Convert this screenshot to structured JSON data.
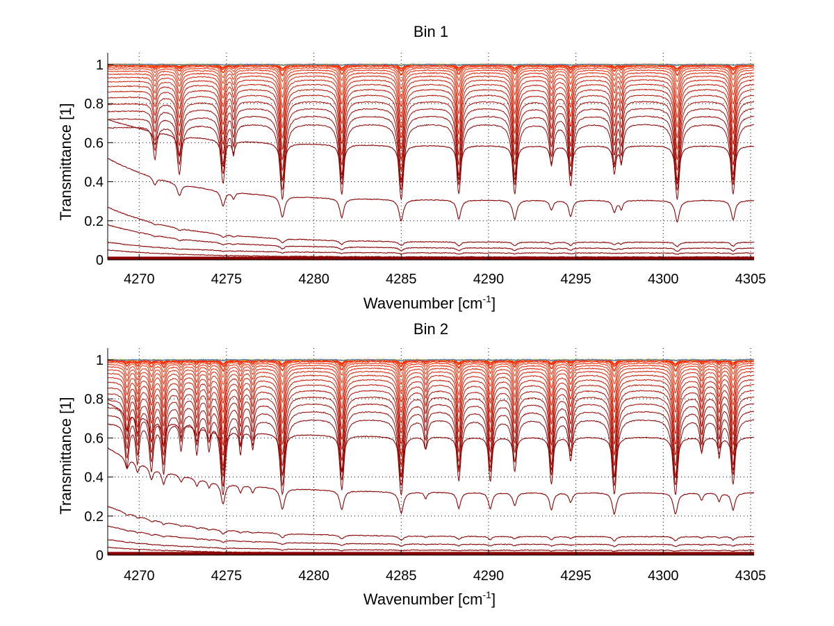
{
  "figure": {
    "background": "#ffffff",
    "grid_color": "#000000",
    "line_color_dark": "#8b0000",
    "line_color_bright": "#ff2a00",
    "top_colors": [
      "#ffa500",
      "#ffd400",
      "#9acd32",
      "#4169e1"
    ]
  },
  "chart_data": [
    {
      "type": "line",
      "title": "Bin 1",
      "xlabel": "Wavenumber [cm",
      "xlabel_sup": "-1",
      "xlabel_end": "]",
      "ylabel": "Transmittance [1]",
      "xlim": [
        4268.2,
        4305.2
      ],
      "ylim": [
        0,
        1.06
      ],
      "xticks": [
        4270,
        4275,
        4280,
        4285,
        4290,
        4295,
        4300,
        4305
      ],
      "xtick_labels": [
        "4270",
        "4275",
        "4280",
        "4285",
        "4290",
        "4295",
        "4300",
        "4305"
      ],
      "yticks": [
        0,
        0.2,
        0.4,
        0.6,
        0.8,
        1
      ],
      "ytick_labels": [
        "0",
        "0.2",
        "0.4",
        "0.6",
        "0.8",
        "1"
      ],
      "grid": true,
      "legend": "none",
      "num_series_approx": 30,
      "absorption_lines": [
        {
          "x": 4270.9,
          "depth": 0.35,
          "width": 0.12
        },
        {
          "x": 4272.3,
          "depth": 0.55,
          "width": 0.14
        },
        {
          "x": 4274.8,
          "depth": 0.7,
          "width": 0.14
        },
        {
          "x": 4275.4,
          "depth": 0.3,
          "width": 0.1
        },
        {
          "x": 4278.2,
          "depth": 1.0,
          "width": 0.15
        },
        {
          "x": 4281.6,
          "depth": 0.9,
          "width": 0.14
        },
        {
          "x": 4285.0,
          "depth": 1.0,
          "width": 0.15
        },
        {
          "x": 4288.3,
          "depth": 0.9,
          "width": 0.14
        },
        {
          "x": 4291.5,
          "depth": 0.9,
          "width": 0.14
        },
        {
          "x": 4293.6,
          "depth": 0.45,
          "width": 0.12
        },
        {
          "x": 4294.7,
          "depth": 0.75,
          "width": 0.13
        },
        {
          "x": 4297.2,
          "depth": 0.55,
          "width": 0.13
        },
        {
          "x": 4297.6,
          "depth": 0.4,
          "width": 0.1
        },
        {
          "x": 4300.8,
          "depth": 1.0,
          "width": 0.15
        },
        {
          "x": 4304.0,
          "depth": 0.9,
          "width": 0.14
        }
      ],
      "low_curves": [
        {
          "label": "baseline ~0.6",
          "left": 0.72,
          "plateau": 0.585,
          "depth_scale": 0.35
        },
        {
          "label": "baseline ~0.3",
          "left": 0.52,
          "plateau": 0.305,
          "depth_scale": 0.2
        },
        {
          "label": "baseline ~0.09",
          "left": 0.27,
          "plateau": 0.09,
          "depth_scale": 0.04
        },
        {
          "label": "baseline ~0.06",
          "left": 0.18,
          "plateau": 0.06,
          "depth_scale": 0.03
        },
        {
          "label": "baseline ~0.03",
          "left": 0.09,
          "plateau": 0.035,
          "depth_scale": 0.01
        },
        {
          "label": "baseline ~0.015",
          "left": 0.05,
          "plateau": 0.015,
          "depth_scale": 0.005
        }
      ]
    },
    {
      "type": "line",
      "title": "Bin 2",
      "xlabel": "Wavenumber [cm",
      "xlabel_sup": "-1",
      "xlabel_end": "]",
      "ylabel": "Transmittance [1]",
      "xlim": [
        4268.2,
        4305.2
      ],
      "ylim": [
        0,
        1.06
      ],
      "xticks": [
        4270,
        4275,
        4280,
        4285,
        4290,
        4295,
        4300,
        4305
      ],
      "xtick_labels": [
        "4270",
        "4275",
        "4280",
        "4285",
        "4290",
        "4295",
        "4300",
        "4305"
      ],
      "yticks": [
        0,
        0.2,
        0.4,
        0.6,
        0.8,
        1
      ],
      "ytick_labels": [
        "0",
        "0.2",
        "0.4",
        "0.6",
        "0.8",
        "1"
      ],
      "grid": true,
      "legend": "none",
      "num_series_approx": 30,
      "absorption_lines": [
        {
          "x": 4269.3,
          "depth": 0.5,
          "width": 0.12
        },
        {
          "x": 4269.9,
          "depth": 0.45,
          "width": 0.1
        },
        {
          "x": 4270.7,
          "depth": 0.55,
          "width": 0.12
        },
        {
          "x": 4271.4,
          "depth": 0.6,
          "width": 0.12
        },
        {
          "x": 4272.4,
          "depth": 0.3,
          "width": 0.1
        },
        {
          "x": 4273.3,
          "depth": 0.35,
          "width": 0.1
        },
        {
          "x": 4274.0,
          "depth": 0.3,
          "width": 0.1
        },
        {
          "x": 4274.8,
          "depth": 1.0,
          "width": 0.14
        },
        {
          "x": 4275.8,
          "depth": 0.35,
          "width": 0.1
        },
        {
          "x": 4276.5,
          "depth": 0.3,
          "width": 0.1
        },
        {
          "x": 4278.2,
          "depth": 1.0,
          "width": 0.15
        },
        {
          "x": 4281.6,
          "depth": 0.9,
          "width": 0.14
        },
        {
          "x": 4285.0,
          "depth": 1.0,
          "width": 0.15
        },
        {
          "x": 4286.4,
          "depth": 0.3,
          "width": 0.1
        },
        {
          "x": 4288.3,
          "depth": 0.75,
          "width": 0.13
        },
        {
          "x": 4290.1,
          "depth": 0.75,
          "width": 0.13
        },
        {
          "x": 4291.5,
          "depth": 0.6,
          "width": 0.13
        },
        {
          "x": 4293.6,
          "depth": 0.8,
          "width": 0.13
        },
        {
          "x": 4294.7,
          "depth": 0.45,
          "width": 0.12
        },
        {
          "x": 4297.2,
          "depth": 1.0,
          "width": 0.14
        },
        {
          "x": 4300.7,
          "depth": 1.0,
          "width": 0.15
        },
        {
          "x": 4302.2,
          "depth": 0.35,
          "width": 0.1
        },
        {
          "x": 4303.2,
          "depth": 0.4,
          "width": 0.1
        },
        {
          "x": 4304.0,
          "depth": 0.8,
          "width": 0.13
        }
      ],
      "low_curves": [
        {
          "label": "baseline ~0.6",
          "left": 0.78,
          "plateau": 0.605,
          "depth_scale": 0.38
        },
        {
          "label": "baseline ~0.32",
          "left": 0.55,
          "plateau": 0.32,
          "depth_scale": 0.2
        },
        {
          "label": "baseline ~0.09",
          "left": 0.25,
          "plateau": 0.095,
          "depth_scale": 0.04
        },
        {
          "label": "baseline ~0.05",
          "left": 0.15,
          "plateau": 0.055,
          "depth_scale": 0.02
        },
        {
          "label": "baseline ~0.025",
          "left": 0.08,
          "plateau": 0.025,
          "depth_scale": 0.01
        },
        {
          "label": "baseline ~0.01",
          "left": 0.04,
          "plateau": 0.01,
          "depth_scale": 0.005
        }
      ]
    }
  ]
}
